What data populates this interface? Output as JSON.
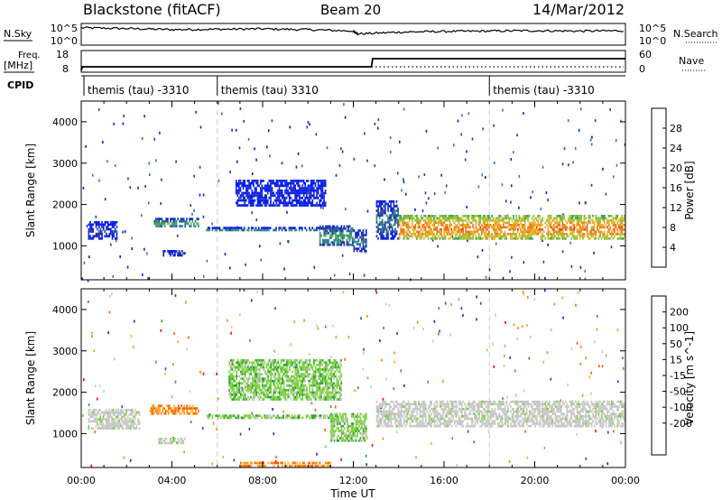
{
  "header": {
    "station": "Blackstone (fitACF)",
    "beam": "Beam 20",
    "date": "14/Mar/2012"
  },
  "labels": {
    "nsky": "N.Sky",
    "nsearch": "N.Search",
    "freq": "Freq.",
    "mhz": "[MHz]",
    "nave": "Nave",
    "cpid": "CPID",
    "tick_1e5": "10^5",
    "tick_1e0": "10^0",
    "freq_hi": "18",
    "freq_lo": "8",
    "nave_hi": "60",
    "nave_lo": "0"
  },
  "cpid": [
    {
      "label": "themis (tau) -3310",
      "start_hour": 0
    },
    {
      "label": "themis (tau) 3310",
      "start_hour": 6
    },
    {
      "label": "themis (tau) -3310",
      "start_hour": 18
    }
  ],
  "colors": {
    "power": [
      "#0a1ee6",
      "#2a3c9c",
      "#2f7f9a",
      "#41a35a",
      "#8fc43a",
      "#f0b428",
      "#f07818",
      "#f03a14",
      "#e61414"
    ],
    "velocity": [
      "#ff0000",
      "#ff5a00",
      "#ff8c00",
      "#ffaf28",
      "#c8c8c8",
      "#c8c8c8",
      "#7cd23c",
      "#2e9e3c",
      "#2850a0",
      "#1428c8"
    ],
    "ground": "#c8c8c8"
  },
  "chart_data": [
    {
      "type": "line",
      "title": "N.Sky / N.Search noise",
      "x": [
        0,
        2,
        4,
        6,
        8,
        10,
        12,
        12.2,
        14,
        16,
        18,
        20,
        22,
        24
      ],
      "values_log10": [
        4.3,
        4.1,
        3.8,
        3.9,
        4.0,
        3.8,
        3.4,
        2.6,
        3.1,
        3.3,
        3.4,
        3.5,
        3.4,
        3.5
      ],
      "ylim": [
        0,
        5
      ],
      "yticks": [
        "10^5",
        "10^0"
      ]
    },
    {
      "type": "line",
      "title": "Freq. [MHz] / Nave",
      "x": [
        0,
        0.05,
        12.8,
        12.85,
        24
      ],
      "freq_mhz": [
        8,
        10,
        10,
        14.5,
        14.5
      ],
      "ylim": [
        8,
        18
      ],
      "nave_line": 0,
      "nave_ylim": [
        0,
        60
      ]
    },
    {
      "type": "heatmap",
      "title": "Power [dB]",
      "ylabel": "Slant Range [km]",
      "xlim": [
        0,
        24
      ],
      "ylim": [
        180,
        4500
      ],
      "yticks": [
        1000,
        2000,
        3000,
        4000
      ],
      "colorbar": {
        "label": "Power [dB]",
        "ticks": [
          4,
          8,
          12,
          16,
          20,
          24,
          28
        ],
        "range": [
          0,
          32
        ]
      },
      "bands": [
        {
          "x": [
            0.3,
            1.6
          ],
          "y": [
            1150,
            1600
          ],
          "level": 2
        },
        {
          "x": [
            3.2,
            5.2
          ],
          "y": [
            1450,
            1680
          ],
          "level": 4
        },
        {
          "x": [
            3.6,
            4.6
          ],
          "y": [
            750,
            900
          ],
          "level": 2
        },
        {
          "x": [
            6.8,
            10.8
          ],
          "y": [
            1950,
            2600
          ],
          "level": 1
        },
        {
          "x": [
            5.5,
            11.5
          ],
          "y": [
            1360,
            1460
          ],
          "level": 3
        },
        {
          "x": [
            10.5,
            12.0
          ],
          "y": [
            1000,
            1500
          ],
          "level": 4
        },
        {
          "x": [
            12.0,
            12.6
          ],
          "y": [
            850,
            1400
          ],
          "level": 3
        },
        {
          "x": [
            13.0,
            14.0
          ],
          "y": [
            1150,
            2100
          ],
          "level": 3
        },
        {
          "x": [
            14.0,
            24.0
          ],
          "y": [
            1150,
            1750
          ],
          "level": 7
        }
      ]
    },
    {
      "type": "heatmap",
      "title": "Velocity [m s^-1]",
      "ylabel": "Slant Range [km]",
      "xlabel": "Time UT",
      "xlim": [
        0,
        24
      ],
      "ylim": [
        180,
        4500
      ],
      "yticks": [
        1000,
        2000,
        3000,
        4000
      ],
      "xticks": [
        "00:00",
        "04:00",
        "08:00",
        "12:00",
        "16:00",
        "20:00",
        "00:00"
      ],
      "colorbar": {
        "label": "Velocity [m s^-1]",
        "ticks": [
          200,
          100,
          50,
          15,
          -15,
          -50,
          -100,
          -200
        ]
      },
      "bands": [
        {
          "x": [
            0.3,
            2.6
          ],
          "y": [
            1100,
            1600
          ],
          "kind": "ground"
        },
        {
          "x": [
            3.0,
            5.2
          ],
          "y": [
            1450,
            1700
          ],
          "kind": "negative"
        },
        {
          "x": [
            3.4,
            4.6
          ],
          "y": [
            750,
            900
          ],
          "kind": "ground"
        },
        {
          "x": [
            6.5,
            11.5
          ],
          "y": [
            1800,
            2800
          ],
          "kind": "positive"
        },
        {
          "x": [
            5.5,
            11.5
          ],
          "y": [
            1360,
            1460
          ],
          "kind": "positive"
        },
        {
          "x": [
            7.0,
            11.0
          ],
          "y": [
            180,
            320
          ],
          "kind": "negative"
        },
        {
          "x": [
            11.0,
            12.6
          ],
          "y": [
            800,
            1500
          ],
          "kind": "positive"
        },
        {
          "x": [
            13.0,
            24.0
          ],
          "y": [
            1150,
            1800
          ],
          "kind": "ground"
        }
      ]
    }
  ]
}
